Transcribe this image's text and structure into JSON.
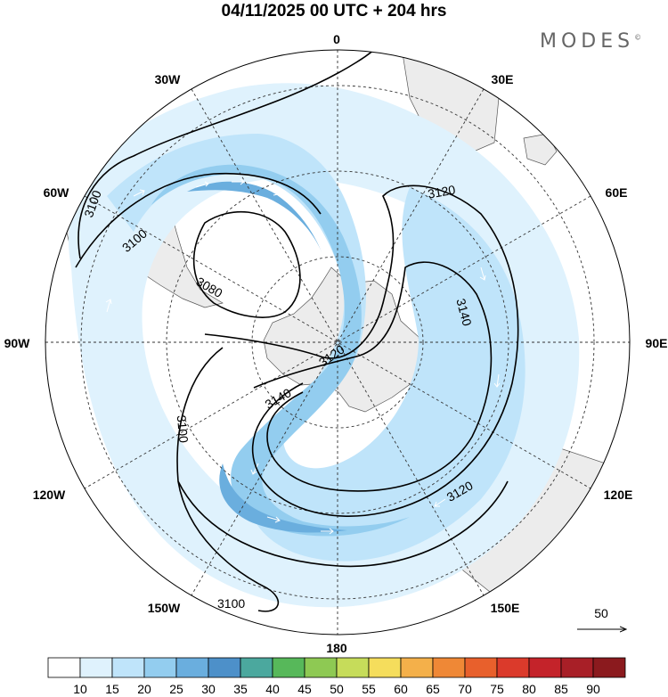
{
  "title": "04/11/2025  00 UTC  + 204 hrs",
  "brand": "MODES",
  "brand_mark": "©",
  "longitude_labels": {
    "lon_0": "0",
    "lon_30e": "30E",
    "lon_60e": "60E",
    "lon_90e": "90E",
    "lon_120e": "120E",
    "lon_150e": "150E",
    "lon_180": "180",
    "lon_150w": "150W",
    "lon_120w": "120W",
    "lon_90w": "90W",
    "lon_60w": "60W",
    "lon_30w": "30W"
  },
  "contour_labels": [
    "3100",
    "3100",
    "3080",
    "3120",
    "3140",
    "3120",
    "3140",
    "3100",
    "3120",
    "3100"
  ],
  "wind_reference": "50",
  "colorbar": {
    "ticks": [
      "10",
      "15",
      "20",
      "25",
      "30",
      "35",
      "40",
      "45",
      "50",
      "55",
      "60",
      "65",
      "70",
      "75",
      "80",
      "85",
      "90"
    ],
    "colors": [
      "#ffffff",
      "#dff2fd",
      "#bfe4fa",
      "#93cdef",
      "#6aaede",
      "#4d90c9",
      "#4ba89e",
      "#57b85a",
      "#8ec953",
      "#c6dc5a",
      "#f5dd5c",
      "#f4b04a",
      "#ef8836",
      "#e8602c",
      "#db3a2b",
      "#c4232a",
      "#a81f27",
      "#8b1a1e"
    ]
  },
  "colors": {
    "land": "#ececec",
    "wind_light": "#dff2fd",
    "wind_mid": "#bfe4fa",
    "wind_strong": "#93cdef",
    "wind_core": "#6aaede",
    "contour": "#000000"
  }
}
